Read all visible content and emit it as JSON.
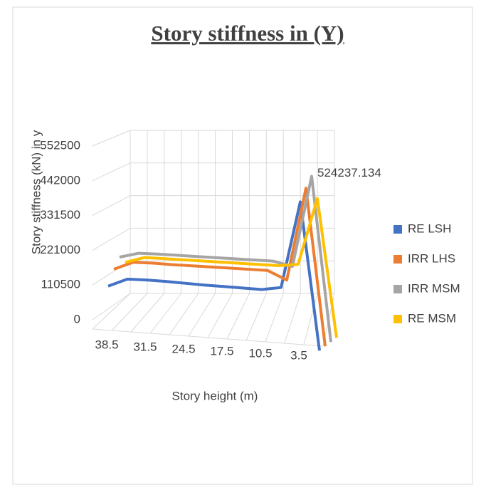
{
  "chart_data": {
    "type": "line3d",
    "title": "Story stiffness in (Y)",
    "x_label": "Story height (m)",
    "y_label": "Story stiffness (kN) in y",
    "categories": [
      "38.5",
      null,
      "31.5",
      null,
      "24.5",
      null,
      "17.5",
      null,
      "10.5",
      null,
      "3.5",
      null
    ],
    "ylim": [
      0,
      552500
    ],
    "yticks": [
      0,
      110500,
      221000,
      331500,
      442000,
      552500
    ],
    "grid": true,
    "legend": "right",
    "series": [
      {
        "name": "RE LSH",
        "color": "#4472c4",
        "values": [
          175000,
          200000,
          200000,
          198000,
          195000,
          192000,
          190000,
          188000,
          186000,
          195000,
          470000,
          0
        ]
      },
      {
        "name": "IRR LHS",
        "color": "#ed7d31",
        "values": [
          215000,
          240000,
          240000,
          238000,
          237000,
          236000,
          235000,
          234000,
          233000,
          205000,
          500000,
          0
        ]
      },
      {
        "name": "IRR MSM",
        "color": "#a5a5a5",
        "values": [
          240000,
          255000,
          255000,
          254000,
          253000,
          252000,
          251000,
          250000,
          249000,
          235000,
          524237.134,
          0
        ]
      },
      {
        "name": "RE MSM",
        "color": "#ffc000",
        "values": [
          210000,
          228000,
          227000,
          226000,
          225000,
          224000,
          223000,
          222000,
          221000,
          228000,
          440000,
          0
        ]
      }
    ]
  }
}
